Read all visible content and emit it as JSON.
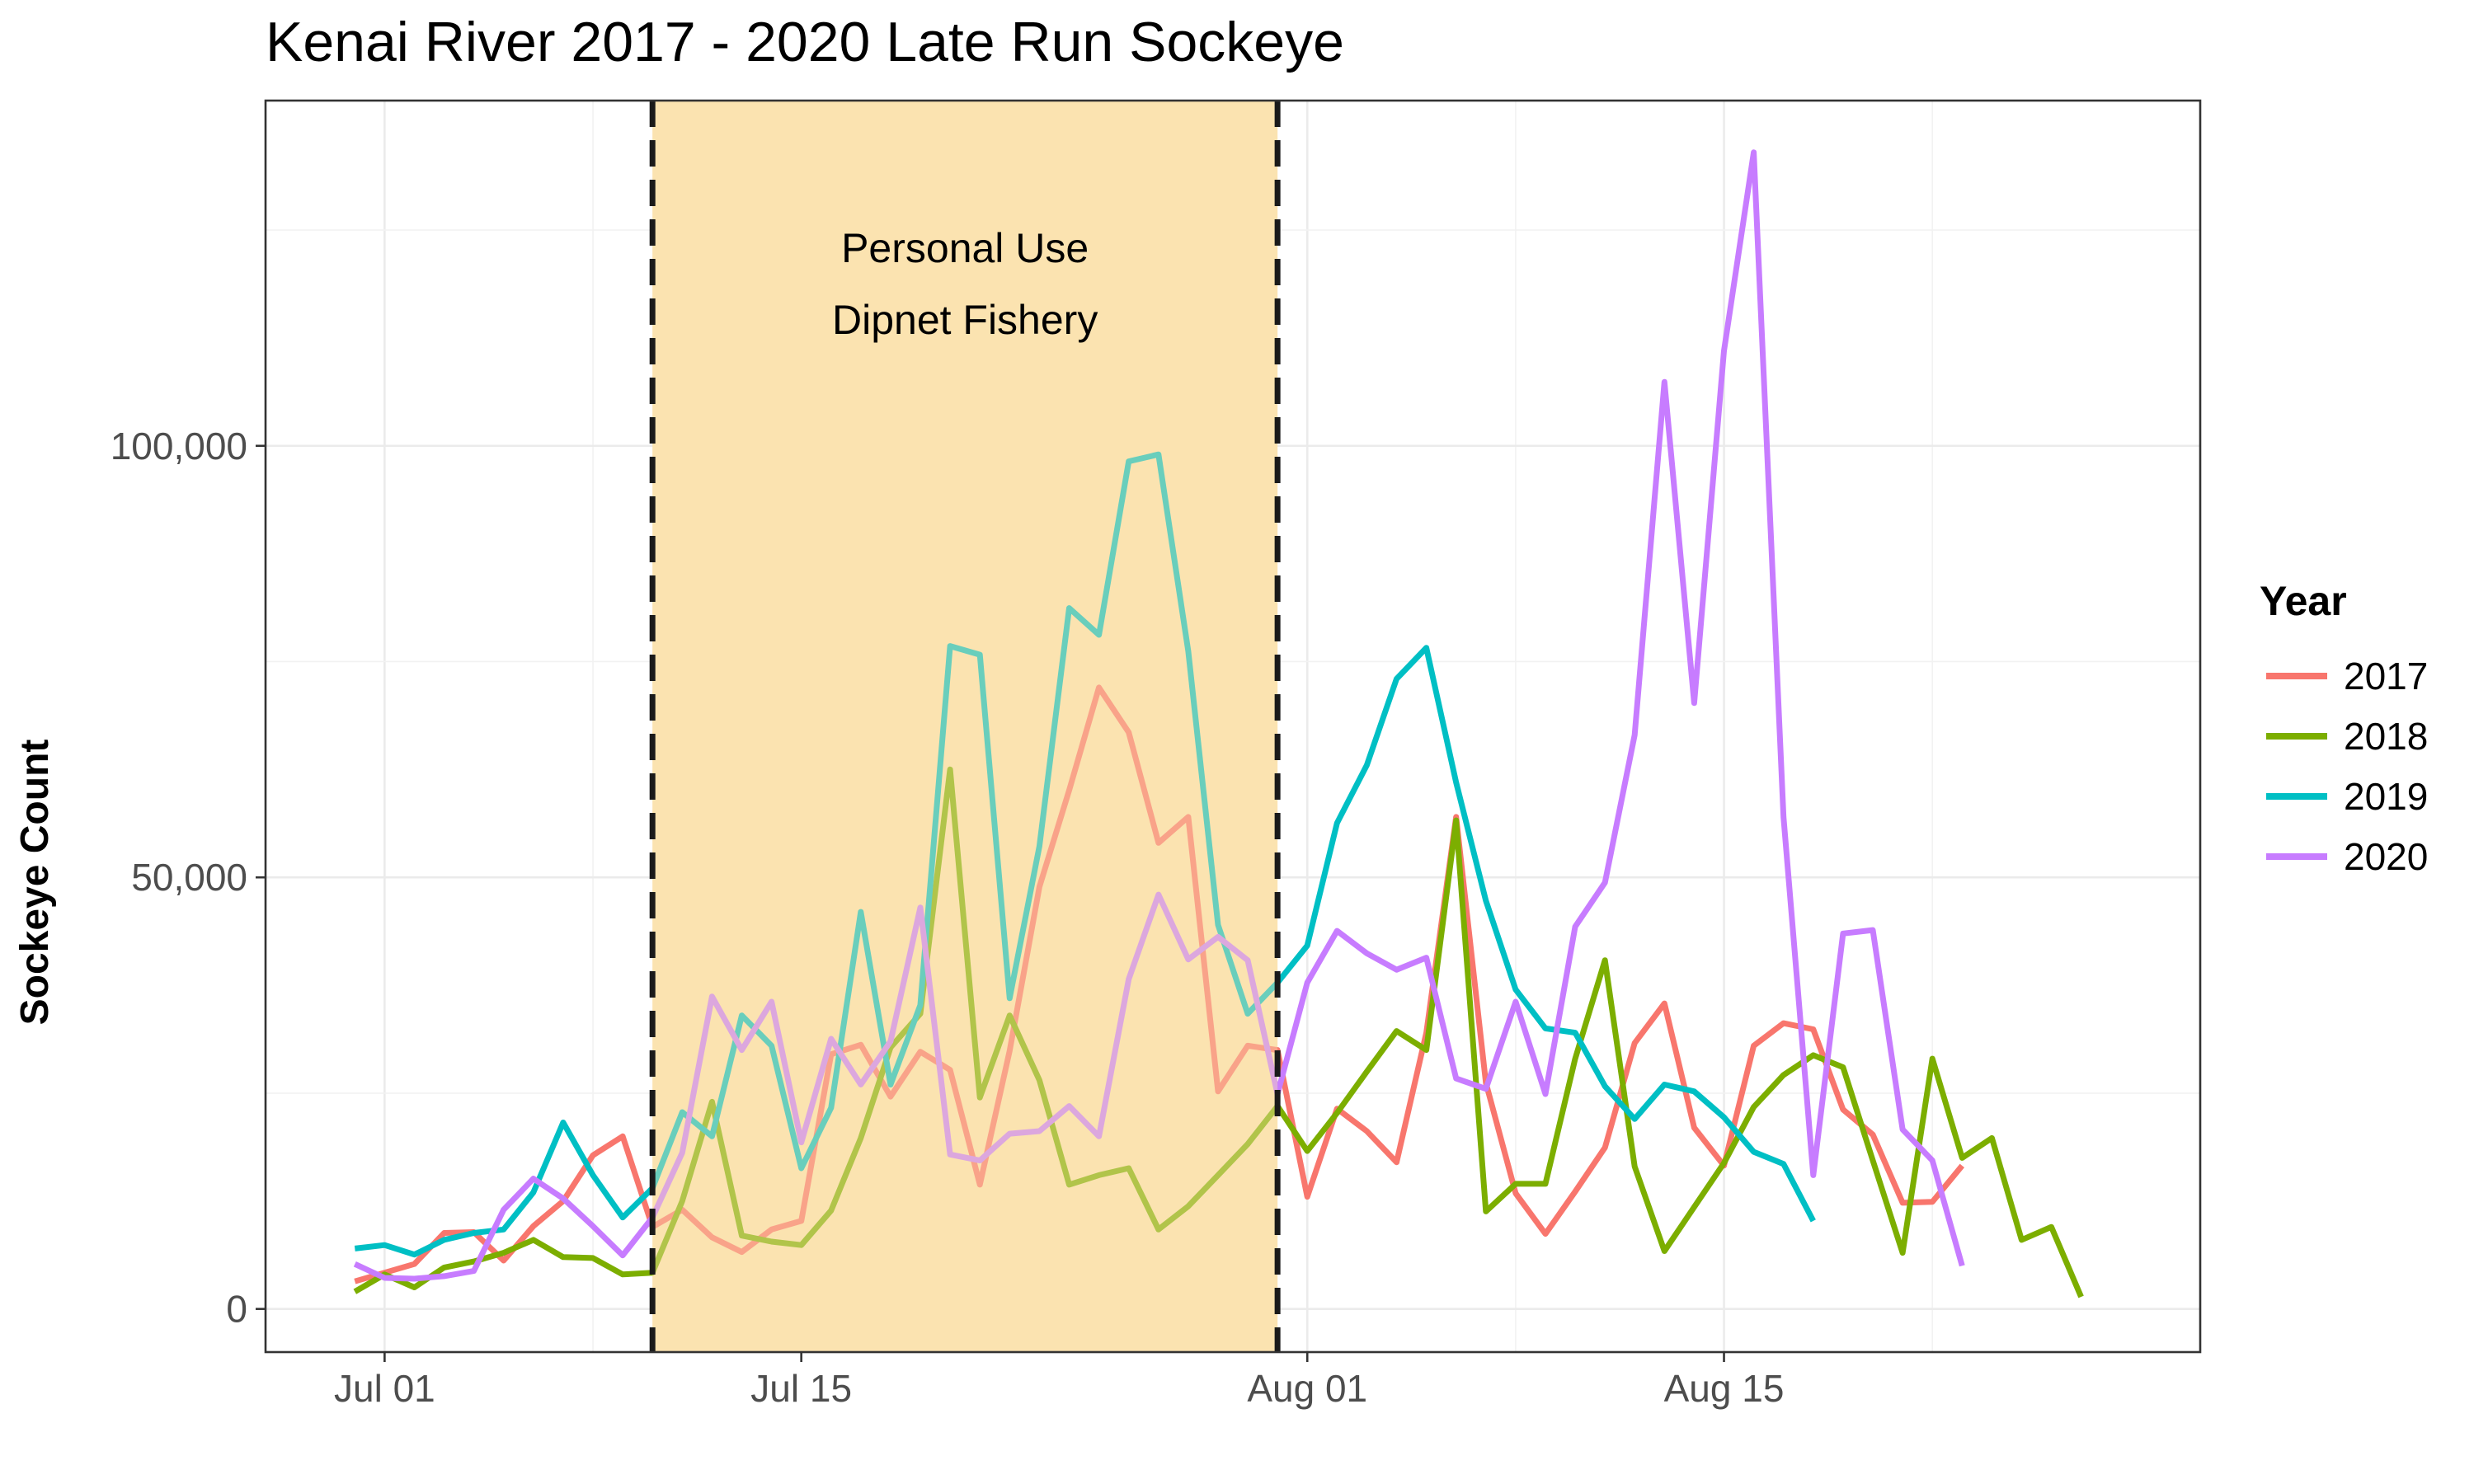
{
  "chart_data": {
    "type": "line",
    "title": "Kenai River 2017 - 2020 Late Run Sockeye",
    "xlabel": "",
    "ylabel": "Sockeye Count",
    "xlim": [
      "2000-06-27",
      "2000-08-31"
    ],
    "ylim": [
      -5000,
      140000
    ],
    "x_ticks": [
      {
        "date": "2000-07-01",
        "label": "Jul 01"
      },
      {
        "date": "2000-07-15",
        "label": "Jul 15"
      },
      {
        "date": "2000-08-01",
        "label": "Aug 01"
      },
      {
        "date": "2000-08-15",
        "label": "Aug 15"
      }
    ],
    "y_ticks": [
      {
        "value": 0,
        "label": "0"
      },
      {
        "value": 50000,
        "label": "50,000"
      },
      {
        "value": 100000,
        "label": "100,000"
      }
    ],
    "grid": true,
    "legend_title": "Year",
    "legend_position": "right",
    "shaded_region": {
      "start": "2000-07-10",
      "end": "2000-07-31",
      "color": "#FBE3B0",
      "line_color": "#1a1a1a",
      "label_lines": [
        "Personal Use",
        "Dipnet Fishery"
      ]
    },
    "series": [
      {
        "name": "2017",
        "color": "#F8766D",
        "points": [
          [
            "2000-06-30",
            3200
          ],
          [
            "2000-07-01",
            4200
          ],
          [
            "2000-07-02",
            5200
          ],
          [
            "2000-07-03",
            8800
          ],
          [
            "2000-07-04",
            8900
          ],
          [
            "2000-07-05",
            5600
          ],
          [
            "2000-07-06",
            9600
          ],
          [
            "2000-07-07",
            12500
          ],
          [
            "2000-07-08",
            17800
          ],
          [
            "2000-07-09",
            20000
          ],
          [
            "2000-07-10",
            9500
          ],
          [
            "2000-07-11",
            11500
          ],
          [
            "2000-07-12",
            8300
          ],
          [
            "2000-07-13",
            6600
          ],
          [
            "2000-07-14",
            9200
          ],
          [
            "2000-07-15",
            10200
          ],
          [
            "2000-07-16",
            29500
          ],
          [
            "2000-07-17",
            30600
          ],
          [
            "2000-07-18",
            24600
          ],
          [
            "2000-07-19",
            29800
          ],
          [
            "2000-07-20",
            27700
          ],
          [
            "2000-07-21",
            14400
          ],
          [
            "2000-07-22",
            29900
          ],
          [
            "2000-07-23",
            48900
          ],
          [
            "2000-07-24",
            60100
          ],
          [
            "2000-07-25",
            72000
          ],
          [
            "2000-07-26",
            66800
          ],
          [
            "2000-07-27",
            54000
          ],
          [
            "2000-07-28",
            57000
          ],
          [
            "2000-07-29",
            25200
          ],
          [
            "2000-07-30",
            30500
          ],
          [
            "2000-07-31",
            30000
          ],
          [
            "2000-08-01",
            13000
          ],
          [
            "2000-08-02",
            23200
          ],
          [
            "2000-08-03",
            20600
          ],
          [
            "2000-08-04",
            17000
          ],
          [
            "2000-08-05",
            32000
          ],
          [
            "2000-08-06",
            57000
          ],
          [
            "2000-08-07",
            26200
          ],
          [
            "2000-08-08",
            13400
          ],
          [
            "2000-08-09",
            8700
          ],
          [
            "2000-08-10",
            13600
          ],
          [
            "2000-08-11",
            18700
          ],
          [
            "2000-08-12",
            30800
          ],
          [
            "2000-08-13",
            35400
          ],
          [
            "2000-08-14",
            21000
          ],
          [
            "2000-08-15",
            16600
          ],
          [
            "2000-08-16",
            30500
          ],
          [
            "2000-08-17",
            33100
          ],
          [
            "2000-08-18",
            32400
          ],
          [
            "2000-08-19",
            23100
          ],
          [
            "2000-08-20",
            20200
          ],
          [
            "2000-08-21",
            12300
          ],
          [
            "2000-08-22",
            12400
          ],
          [
            "2000-08-23",
            16600
          ]
        ]
      },
      {
        "name": "2018",
        "color": "#7CAE00",
        "points": [
          [
            "2000-06-30",
            2000
          ],
          [
            "2000-07-01",
            4000
          ],
          [
            "2000-07-02",
            2500
          ],
          [
            "2000-07-03",
            4800
          ],
          [
            "2000-07-04",
            5500
          ],
          [
            "2000-07-05",
            6500
          ],
          [
            "2000-07-06",
            8000
          ],
          [
            "2000-07-07",
            6000
          ],
          [
            "2000-07-08",
            5900
          ],
          [
            "2000-07-09",
            4000
          ],
          [
            "2000-07-10",
            4200
          ],
          [
            "2000-07-11",
            12500
          ],
          [
            "2000-07-12",
            24000
          ],
          [
            "2000-07-13",
            8500
          ],
          [
            "2000-07-14",
            7800
          ],
          [
            "2000-07-15",
            7400
          ],
          [
            "2000-07-16",
            11400
          ],
          [
            "2000-07-17",
            19800
          ],
          [
            "2000-07-18",
            30300
          ],
          [
            "2000-07-19",
            34200
          ],
          [
            "2000-07-20",
            62500
          ],
          [
            "2000-07-21",
            24500
          ],
          [
            "2000-07-22",
            34000
          ],
          [
            "2000-07-23",
            26500
          ],
          [
            "2000-07-24",
            14400
          ],
          [
            "2000-07-25",
            15500
          ],
          [
            "2000-07-26",
            16300
          ],
          [
            "2000-07-27",
            9200
          ],
          [
            "2000-07-28",
            11900
          ],
          [
            "2000-07-29",
            15500
          ],
          [
            "2000-07-30",
            19100
          ],
          [
            "2000-07-31",
            23500
          ],
          [
            "2000-08-01",
            18300
          ],
          [
            "2000-08-02",
            22700
          ],
          [
            "2000-08-03",
            27500
          ],
          [
            "2000-08-04",
            32200
          ],
          [
            "2000-08-05",
            30000
          ],
          [
            "2000-08-06",
            56600
          ],
          [
            "2000-08-07",
            11300
          ],
          [
            "2000-08-08",
            14500
          ],
          [
            "2000-08-09",
            14500
          ],
          [
            "2000-08-10",
            29000
          ],
          [
            "2000-08-11",
            40400
          ],
          [
            "2000-08-12",
            16500
          ],
          [
            "2000-08-13",
            6700
          ],
          [
            "2000-08-14",
            11800
          ],
          [
            "2000-08-15",
            16900
          ],
          [
            "2000-08-16",
            23400
          ],
          [
            "2000-08-17",
            27100
          ],
          [
            "2000-08-18",
            29400
          ],
          [
            "2000-08-19",
            28000
          ],
          [
            "2000-08-20",
            17200
          ],
          [
            "2000-08-21",
            6500
          ],
          [
            "2000-08-22",
            29000
          ],
          [
            "2000-08-23",
            17500
          ],
          [
            "2000-08-24",
            19800
          ],
          [
            "2000-08-25",
            8000
          ],
          [
            "2000-08-26",
            9500
          ],
          [
            "2000-08-27",
            1400
          ]
        ]
      },
      {
        "name": "2019",
        "color": "#00BFC4",
        "points": [
          [
            "2000-06-30",
            7000
          ],
          [
            "2000-07-01",
            7400
          ],
          [
            "2000-07-02",
            6300
          ],
          [
            "2000-07-03",
            8000
          ],
          [
            "2000-07-04",
            8800
          ],
          [
            "2000-07-05",
            9200
          ],
          [
            "2000-07-06",
            13500
          ],
          [
            "2000-07-07",
            21600
          ],
          [
            "2000-07-08",
            15500
          ],
          [
            "2000-07-09",
            10600
          ],
          [
            "2000-07-10",
            14000
          ],
          [
            "2000-07-11",
            22800
          ],
          [
            "2000-07-12",
            20000
          ],
          [
            "2000-07-13",
            34000
          ],
          [
            "2000-07-14",
            30500
          ],
          [
            "2000-07-15",
            16300
          ],
          [
            "2000-07-16",
            23300
          ],
          [
            "2000-07-17",
            46000
          ],
          [
            "2000-07-18",
            26000
          ],
          [
            "2000-07-19",
            35200
          ],
          [
            "2000-07-20",
            76800
          ],
          [
            "2000-07-21",
            75800
          ],
          [
            "2000-07-22",
            36000
          ],
          [
            "2000-07-23",
            53600
          ],
          [
            "2000-07-24",
            81200
          ],
          [
            "2000-07-25",
            78100
          ],
          [
            "2000-07-26",
            98200
          ],
          [
            "2000-07-27",
            99000
          ],
          [
            "2000-07-28",
            76200
          ],
          [
            "2000-07-29",
            44500
          ],
          [
            "2000-07-30",
            34200
          ],
          [
            "2000-07-31",
            37800
          ],
          [
            "2000-08-01",
            42100
          ],
          [
            "2000-08-02",
            56300
          ],
          [
            "2000-08-03",
            63000
          ],
          [
            "2000-08-04",
            73000
          ],
          [
            "2000-08-05",
            76600
          ],
          [
            "2000-08-06",
            61000
          ],
          [
            "2000-08-07",
            47300
          ],
          [
            "2000-08-08",
            37000
          ],
          [
            "2000-08-09",
            32500
          ],
          [
            "2000-08-10",
            32000
          ],
          [
            "2000-08-11",
            25800
          ],
          [
            "2000-08-12",
            22000
          ],
          [
            "2000-08-13",
            26000
          ],
          [
            "2000-08-14",
            25200
          ],
          [
            "2000-08-15",
            22200
          ],
          [
            "2000-08-16",
            18200
          ],
          [
            "2000-08-17",
            16800
          ],
          [
            "2000-08-18",
            10200
          ]
        ]
      },
      {
        "name": "2020",
        "color": "#C77CFF",
        "points": [
          [
            "2000-06-30",
            5200
          ],
          [
            "2000-07-01",
            3600
          ],
          [
            "2000-07-02",
            3500
          ],
          [
            "2000-07-03",
            3800
          ],
          [
            "2000-07-04",
            4400
          ],
          [
            "2000-07-05",
            11500
          ],
          [
            "2000-07-06",
            15100
          ],
          [
            "2000-07-07",
            12800
          ],
          [
            "2000-07-08",
            9600
          ],
          [
            "2000-07-09",
            6200
          ],
          [
            "2000-07-10",
            10600
          ],
          [
            "2000-07-11",
            18100
          ],
          [
            "2000-07-12",
            36200
          ],
          [
            "2000-07-13",
            30000
          ],
          [
            "2000-07-14",
            35600
          ],
          [
            "2000-07-15",
            19300
          ],
          [
            "2000-07-16",
            31300
          ],
          [
            "2000-07-17",
            26000
          ],
          [
            "2000-07-18",
            31000
          ],
          [
            "2000-07-19",
            46500
          ],
          [
            "2000-07-20",
            17900
          ],
          [
            "2000-07-21",
            17200
          ],
          [
            "2000-07-22",
            20300
          ],
          [
            "2000-07-23",
            20600
          ],
          [
            "2000-07-24",
            23500
          ],
          [
            "2000-07-25",
            20000
          ],
          [
            "2000-07-26",
            38200
          ],
          [
            "2000-07-27",
            48000
          ],
          [
            "2000-07-28",
            40500
          ],
          [
            "2000-07-29",
            43100
          ],
          [
            "2000-07-30",
            40400
          ],
          [
            "2000-07-31",
            24900
          ],
          [
            "2000-08-01",
            37800
          ],
          [
            "2000-08-02",
            43800
          ],
          [
            "2000-08-03",
            41200
          ],
          [
            "2000-08-04",
            39300
          ],
          [
            "2000-08-05",
            40700
          ],
          [
            "2000-08-06",
            26700
          ],
          [
            "2000-08-07",
            25500
          ],
          [
            "2000-08-08",
            35600
          ],
          [
            "2000-08-09",
            24900
          ],
          [
            "2000-08-10",
            44300
          ],
          [
            "2000-08-11",
            49400
          ],
          [
            "2000-08-12",
            66500
          ],
          [
            "2000-08-13",
            107400
          ],
          [
            "2000-08-14",
            70200
          ],
          [
            "2000-08-15",
            111000
          ],
          [
            "2000-08-16",
            134000
          ],
          [
            "2000-08-17",
            57000
          ],
          [
            "2000-08-18",
            15500
          ],
          [
            "2000-08-19",
            43500
          ],
          [
            "2000-08-20",
            43900
          ],
          [
            "2000-08-21",
            20800
          ],
          [
            "2000-08-22",
            17200
          ],
          [
            "2000-08-23",
            5000
          ]
        ]
      }
    ]
  }
}
